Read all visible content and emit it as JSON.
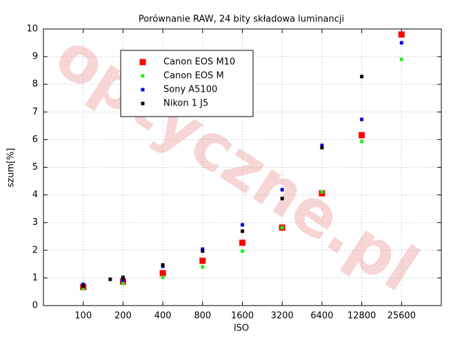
{
  "chart_data": {
    "type": "scatter",
    "title": "Porównanie RAW, 24 bity składowa luminancji",
    "x_label": "ISO",
    "y_label": "szum[%]",
    "watermark": "optyczne.pl",
    "log_x": true,
    "grid": true,
    "legend": "upper left",
    "xlim": [
      50,
      51200
    ],
    "xticks": [
      100,
      200,
      400,
      800,
      1600,
      3200,
      6400,
      12800,
      25600
    ],
    "ylim": [
      0,
      10
    ],
    "yticks": [
      0,
      1,
      2,
      3,
      4,
      5,
      6,
      7,
      8,
      9,
      10
    ],
    "series": [
      {
        "name": "Canon EOS M10",
        "color": "#ff0000",
        "x": [
          100,
          200,
          400,
          800,
          1600,
          3200,
          6400,
          12800,
          25600
        ],
        "values": [
          0.67,
          0.87,
          1.17,
          1.62,
          2.27,
          2.82,
          4.06,
          6.16,
          9.8
        ]
      },
      {
        "name": "Canon EOS M",
        "color": "#22ee22",
        "x": [
          100,
          200,
          400,
          800,
          1600,
          3200,
          6400,
          12800,
          25600
        ],
        "values": [
          0.62,
          0.8,
          1.02,
          1.4,
          1.97,
          2.82,
          4.11,
          5.93,
          8.9
        ]
      },
      {
        "name": "Sony A5100",
        "color": "#0000dd",
        "x": [
          100,
          200,
          400,
          800,
          1600,
          3200,
          6400,
          12800,
          25600
        ],
        "values": [
          0.77,
          0.92,
          1.42,
          2.04,
          2.92,
          4.19,
          5.79,
          6.73,
          9.5
        ]
      },
      {
        "name": "Nikon 1 J5",
        "color": "#000000",
        "x": [
          100,
          160,
          200,
          400,
          800,
          1600,
          3200,
          6400,
          12800
        ],
        "values": [
          0.7,
          0.95,
          1.02,
          1.47,
          1.97,
          2.69,
          3.87,
          5.71,
          8.28
        ]
      }
    ]
  }
}
